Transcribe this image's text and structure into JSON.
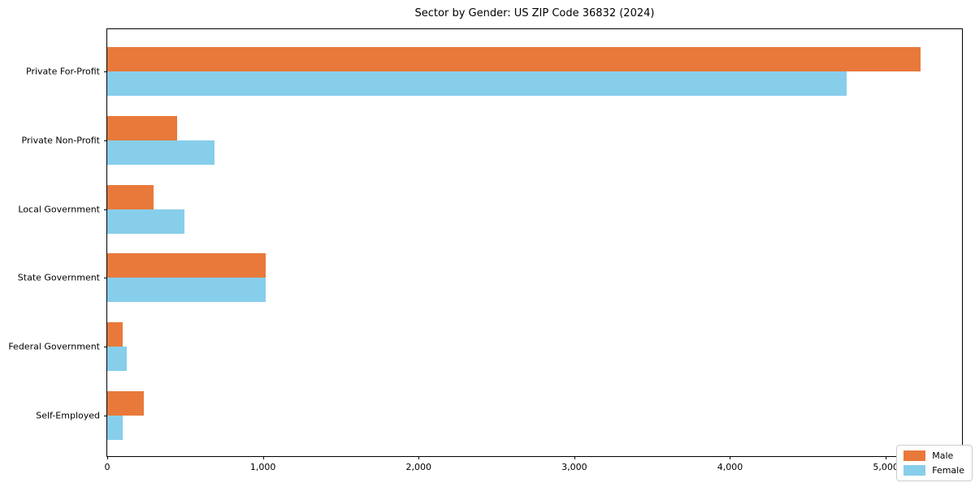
{
  "chart_data": {
    "type": "bar",
    "orientation": "horizontal",
    "title": "Sector by Gender: US ZIP Code 36832 (2024)",
    "categories": [
      "Private For-Profit",
      "Private Non-Profit",
      "Local Government",
      "State Government",
      "Federal Government",
      "Self-Employed"
    ],
    "series": [
      {
        "name": "Male",
        "color": "#E8793B",
        "values": [
          5225,
          450,
          300,
          1020,
          100,
          235
        ]
      },
      {
        "name": "Female",
        "color": "#87CEEB",
        "values": [
          4750,
          690,
          495,
          1020,
          125,
          100
        ]
      }
    ],
    "xlabel": "",
    "ylabel": "",
    "xlim": [
      0,
      5490
    ],
    "xticks": [
      0,
      1000,
      2000,
      3000,
      4000,
      5000
    ],
    "xtick_labels": [
      "0",
      "1,000",
      "2,000",
      "3,000",
      "4,000",
      "5,000"
    ],
    "grid": false,
    "legend_position": "lower right",
    "plot_border_color": "#000000",
    "background_color": "#ffffff"
  }
}
